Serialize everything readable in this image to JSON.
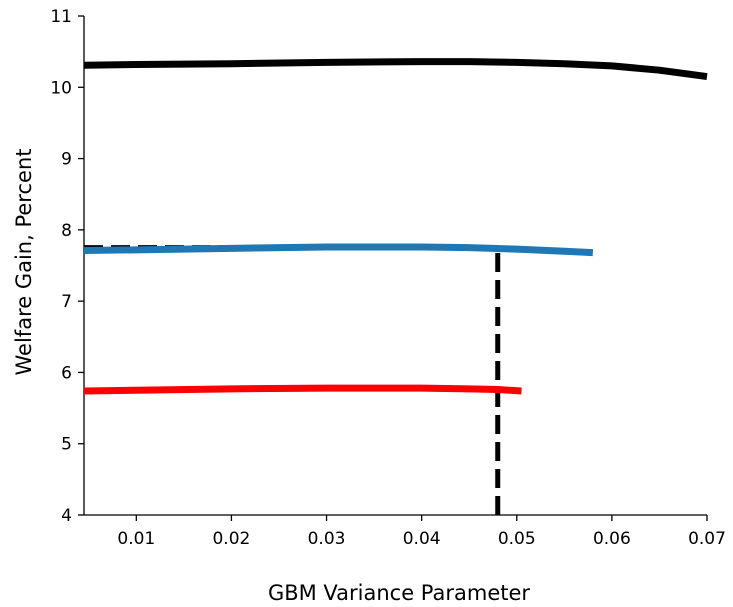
{
  "chart_data": {
    "type": "line",
    "xlabel": "GBM Variance Parameter",
    "ylabel": "Welfare Gain, Percent",
    "xlim": [
      0.0045,
      0.07
    ],
    "ylim": [
      4,
      11
    ],
    "xticks": [
      0.01,
      0.02,
      0.03,
      0.04,
      0.05,
      0.06,
      0.07
    ],
    "xtick_labels": [
      "0.01",
      "0.02",
      "0.03",
      "0.04",
      "0.05",
      "0.06",
      "0.07"
    ],
    "yticks": [
      4,
      5,
      6,
      7,
      8,
      9,
      10,
      11
    ],
    "ytick_labels": [
      "4",
      "5",
      "6",
      "7",
      "8",
      "9",
      "10",
      "11"
    ],
    "grid": false,
    "legend": "none",
    "series": [
      {
        "color": "#000000",
        "style": "solid",
        "x": [
          0.0045,
          0.01,
          0.02,
          0.03,
          0.04,
          0.045,
          0.05,
          0.055,
          0.06,
          0.065,
          0.07
        ],
        "y": [
          10.31,
          10.32,
          10.33,
          10.35,
          10.36,
          10.36,
          10.35,
          10.33,
          10.3,
          10.24,
          10.15
        ]
      },
      {
        "color": "#1f77b4",
        "style": "solid",
        "x": [
          0.0045,
          0.01,
          0.02,
          0.03,
          0.04,
          0.045,
          0.05,
          0.055,
          0.058
        ],
        "y": [
          7.71,
          7.72,
          7.74,
          7.76,
          7.76,
          7.75,
          7.73,
          7.7,
          7.68
        ]
      },
      {
        "color": "#ff0000",
        "style": "solid",
        "x": [
          0.0045,
          0.01,
          0.02,
          0.03,
          0.04,
          0.045,
          0.048,
          0.0505
        ],
        "y": [
          5.74,
          5.75,
          5.77,
          5.78,
          5.78,
          5.77,
          5.76,
          5.74
        ]
      }
    ],
    "reference_lines": [
      {
        "orientation": "horizontal",
        "color": "#000000",
        "style": "dashed",
        "y": 7.75,
        "x_from": 0.0045,
        "x_to": 0.048
      },
      {
        "orientation": "vertical",
        "color": "#000000",
        "style": "dashed",
        "x": 0.048,
        "y_from": 4,
        "y_to": 7.75
      }
    ]
  }
}
